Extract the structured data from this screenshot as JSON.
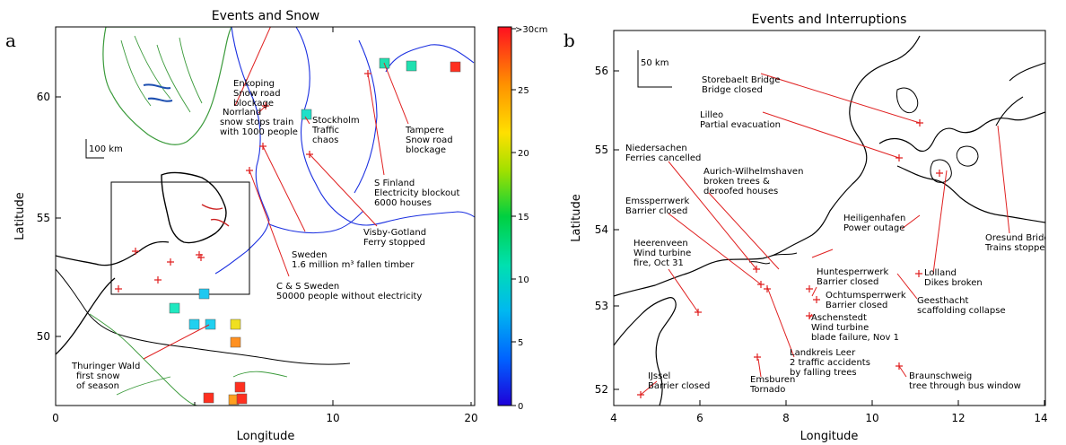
{
  "panel_a": {
    "letter": "a",
    "title": "Events and Snow",
    "xlabel": "Longitude",
    "ylabel": "Latitude",
    "x_ticks": [
      "0",
      "10",
      "20"
    ],
    "y_ticks": [
      "50",
      "55",
      "60"
    ],
    "scale_label": "100 km",
    "colorbar": {
      "top_label": ">30cm",
      "ticks": [
        "0",
        "5",
        "10",
        "15",
        "20",
        "25"
      ],
      "colors": [
        "#1e00d8",
        "#0080ff",
        "#00d0e8",
        "#00d060",
        "#a0e000",
        "#ffe000",
        "#ff9000",
        "#ff3000",
        "#e00020"
      ]
    },
    "annotations": [
      {
        "id": "norrland",
        "lines": [
          "Norrland",
          "snow stops train",
          "with 1000 people"
        ]
      },
      {
        "id": "enkoping",
        "lines": [
          "Enkoping",
          "Snow road",
          "blockage"
        ]
      },
      {
        "id": "stockholm",
        "lines": [
          "Stockholm",
          "Traffic",
          "chaos"
        ]
      },
      {
        "id": "tampere",
        "lines": [
          "Tampere",
          "Snow road",
          "blockage"
        ]
      },
      {
        "id": "sfinland",
        "lines": [
          "S Finland",
          "Electricity blockout",
          "6000 houses"
        ]
      },
      {
        "id": "visby",
        "lines": [
          "Visby-Gotland",
          "Ferry stopped"
        ]
      },
      {
        "id": "sweden",
        "lines": [
          "Sweden",
          "1.6 million m³ fallen timber"
        ]
      },
      {
        "id": "cssweden",
        "lines": [
          "C & S Sweden",
          "50000 people without electricity"
        ]
      },
      {
        "id": "thuringer",
        "lines": [
          "Thuringer Wald",
          "first snow",
          "of season"
        ]
      }
    ]
  },
  "panel_b": {
    "letter": "b",
    "title": "Events and Interruptions",
    "xlabel": "Longitude",
    "ylabel": "Latitude",
    "x_ticks": [
      "4",
      "6",
      "8",
      "10",
      "12",
      "14"
    ],
    "y_ticks": [
      "52",
      "53",
      "54",
      "55",
      "56"
    ],
    "scale_label": "50 km",
    "annotations": [
      {
        "id": "storebaelt",
        "lines": [
          "Storebaelt Bridge",
          "Bridge closed"
        ]
      },
      {
        "id": "lilleo",
        "lines": [
          "Lilleo",
          "Partial evacuation"
        ]
      },
      {
        "id": "niedersachen",
        "lines": [
          "Niedersachen",
          "Ferries cancelled"
        ]
      },
      {
        "id": "aurich",
        "lines": [
          "Aurich-Wilhelmshaven",
          "broken trees &",
          "deroofed houses"
        ]
      },
      {
        "id": "emssperrwerk",
        "lines": [
          "Emssperrwerk",
          "Barrier closed"
        ]
      },
      {
        "id": "heiligenhafen",
        "lines": [
          "Heiligenhafen",
          "Power outage"
        ]
      },
      {
        "id": "oresund",
        "lines": [
          "Oresund Bridge",
          "Trains stopped"
        ]
      },
      {
        "id": "heerenveen",
        "lines": [
          "Heerenveen",
          "Wind turbine",
          "fire, Oct 31"
        ]
      },
      {
        "id": "huntesperrwerk",
        "lines": [
          "Huntesperrwerk",
          "Barrier closed"
        ]
      },
      {
        "id": "ochtum",
        "lines": [
          "Ochtumsperrwerk",
          "Barrier closed"
        ]
      },
      {
        "id": "lolland",
        "lines": [
          "Lolland",
          "Dikes broken"
        ]
      },
      {
        "id": "geesthacht",
        "lines": [
          "Geesthacht",
          "scaffolding collapse"
        ]
      },
      {
        "id": "aschenstedt",
        "lines": [
          "Aschenstedt",
          "Wind turbine",
          "blade failure, Nov 1"
        ]
      },
      {
        "id": "leer",
        "lines": [
          "Landkreis Leer",
          "2 traffic accidents",
          "by falling trees"
        ]
      },
      {
        "id": "ussel",
        "lines": [
          "IJssel",
          "Barrier closed"
        ]
      },
      {
        "id": "emsburen",
        "lines": [
          "Emsburen",
          "Tornado"
        ]
      },
      {
        "id": "braunschweig",
        "lines": [
          "Braunschweig",
          "tree through bus window"
        ]
      }
    ]
  }
}
